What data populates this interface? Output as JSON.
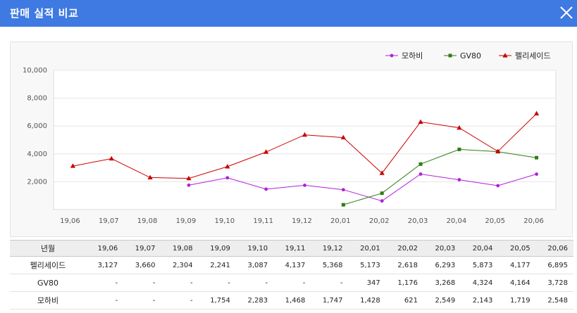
{
  "window": {
    "title": "판매 실적 비교",
    "close_icon": "close-icon"
  },
  "colors": {
    "titlebar": "#3f79e2",
    "mohavi": "#b020d8",
    "gv80": "#2e7d14",
    "palisade": "#cc0000"
  },
  "chart_data": {
    "type": "line",
    "categories": [
      "19,06",
      "19,07",
      "19,08",
      "19,09",
      "19,10",
      "19,11",
      "19,12",
      "20,01",
      "20,02",
      "20,03",
      "20,04",
      "20,05",
      "20,06"
    ],
    "ylim": [
      0,
      10000
    ],
    "yticks": [
      "2,000",
      "4,000",
      "6,000",
      "8,000",
      "10,000"
    ],
    "ytick_values": [
      2000,
      4000,
      6000,
      8000,
      10000
    ],
    "legend_position": "top-right",
    "grid": true,
    "series": [
      {
        "name": "모하비",
        "color": "#b020d8",
        "marker": "circle",
        "values": [
          null,
          null,
          null,
          1754,
          2283,
          1468,
          1747,
          1428,
          621,
          2549,
          2143,
          1719,
          2548
        ]
      },
      {
        "name": "GV80",
        "color": "#2e7d14",
        "marker": "square",
        "values": [
          null,
          null,
          null,
          null,
          null,
          null,
          null,
          347,
          1176,
          3268,
          4324,
          4164,
          3728
        ]
      },
      {
        "name": "펠리세이드",
        "color": "#cc0000",
        "marker": "triangle",
        "values": [
          3127,
          3660,
          2304,
          2241,
          3087,
          4137,
          5368,
          5173,
          2618,
          6293,
          5873,
          4177,
          6895
        ]
      }
    ]
  },
  "table": {
    "header_label": "년월",
    "columns": [
      "19,06",
      "19,07",
      "19,08",
      "19,09",
      "19,10",
      "19,11",
      "19,12",
      "20,01",
      "20,02",
      "20,03",
      "20,04",
      "20,05",
      "20,06"
    ],
    "rows": [
      {
        "label": "펠리세이드",
        "cells": [
          "3,127",
          "3,660",
          "2,304",
          "2,241",
          "3,087",
          "4,137",
          "5,368",
          "5,173",
          "2,618",
          "6,293",
          "5,873",
          "4,177",
          "6,895"
        ]
      },
      {
        "label": "GV80",
        "cells": [
          "-",
          "-",
          "-",
          "-",
          "-",
          "-",
          "-",
          "347",
          "1,176",
          "3,268",
          "4,324",
          "4,164",
          "3,728"
        ]
      },
      {
        "label": "모하비",
        "cells": [
          "-",
          "-",
          "-",
          "1,754",
          "2,283",
          "1,468",
          "1,747",
          "1,428",
          "621",
          "2,549",
          "2,143",
          "1,719",
          "2,548"
        ]
      }
    ]
  }
}
